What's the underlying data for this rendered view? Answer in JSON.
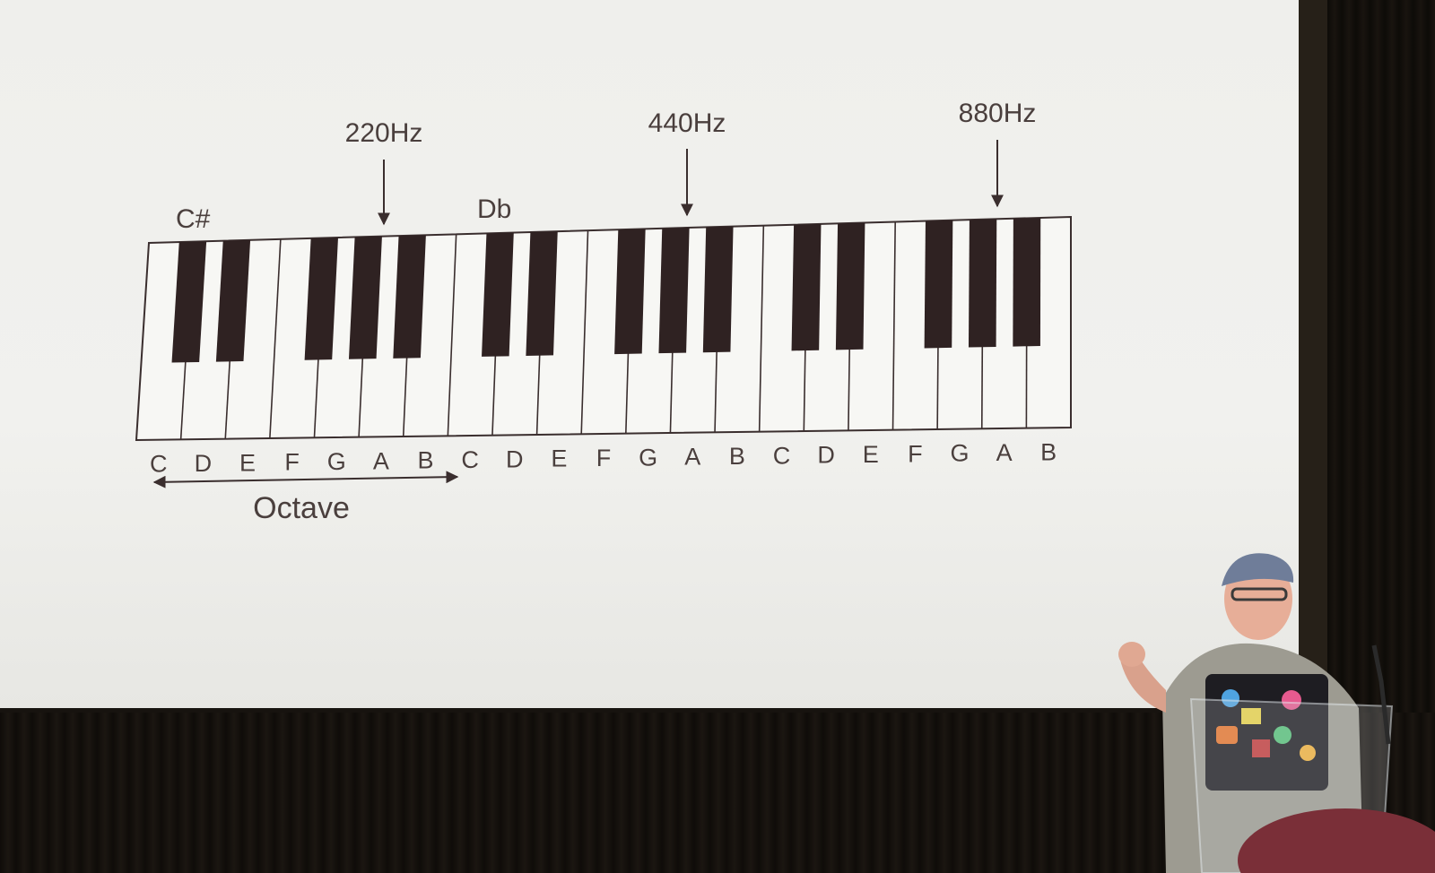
{
  "slide": {
    "frequency_labels": [
      {
        "label": "220Hz"
      },
      {
        "label": "440Hz"
      },
      {
        "label": "880Hz"
      }
    ],
    "accidental_labels": [
      {
        "label": "C#"
      },
      {
        "label": "Db"
      }
    ],
    "note_names": [
      "C",
      "D",
      "E",
      "F",
      "G",
      "A",
      "B",
      "C",
      "D",
      "E",
      "F",
      "G",
      "A",
      "B",
      "C",
      "D",
      "E",
      "F",
      "G",
      "A",
      "B"
    ],
    "octave_label": "Octave"
  },
  "colors": {
    "slide_background": "#f0f0ed",
    "ink": "#3a2e2e",
    "stage": "#17130f"
  }
}
